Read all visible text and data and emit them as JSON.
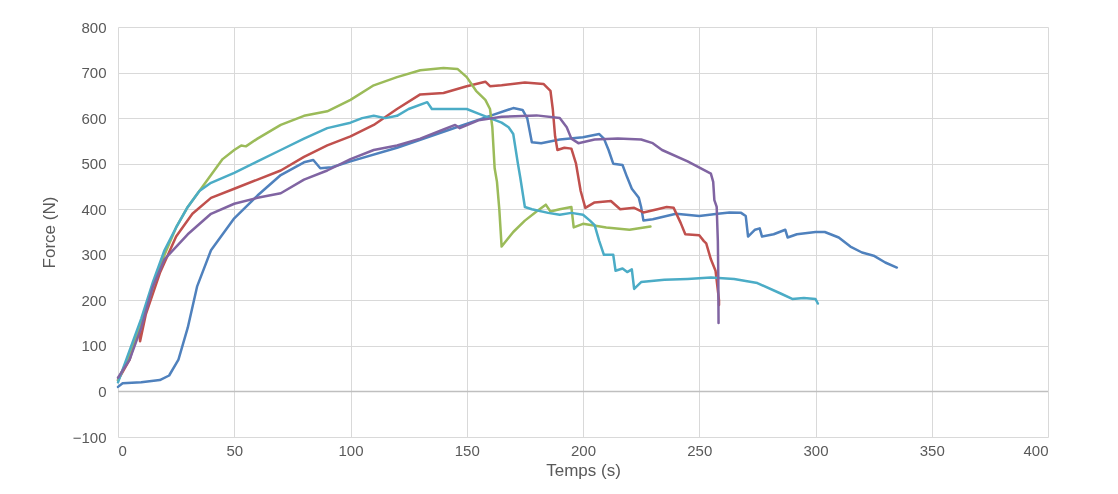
{
  "chart_data": {
    "type": "line",
    "xlabel": "Temps (s)",
    "ylabel": "Force (N)",
    "xlim": [
      0,
      400
    ],
    "ylim": [
      -100,
      800
    ],
    "xticks": [
      0,
      50,
      100,
      150,
      200,
      250,
      300,
      350,
      400
    ],
    "yticks": [
      -100,
      0,
      100,
      200,
      300,
      400,
      500,
      600,
      700,
      800
    ],
    "grid": true,
    "legend": false,
    "marker": "none",
    "line_style": "solid",
    "series": [
      {
        "color": "#4f81bd",
        "x": [
          0,
          2,
          10,
          18,
          22,
          26,
          30,
          34,
          40,
          50,
          60,
          70,
          80,
          84,
          87,
          92,
          100,
          120,
          140,
          160,
          170,
          174,
          176,
          178,
          182,
          190,
          200,
          207,
          209,
          211,
          213,
          217,
          219,
          221,
          224,
          225,
          226,
          230,
          240,
          250,
          258,
          263,
          268,
          270,
          271,
          274,
          276,
          277,
          282,
          287,
          288,
          292,
          300,
          304,
          310,
          315,
          320,
          325,
          330,
          335
        ],
        "values": [
          10,
          18,
          20,
          25,
          35,
          70,
          140,
          230,
          310,
          380,
          430,
          475,
          503,
          508,
          490,
          492,
          505,
          535,
          570,
          605,
          622,
          618,
          600,
          547,
          545,
          553,
          558,
          565,
          555,
          530,
          500,
          497,
          470,
          445,
          425,
          405,
          375,
          378,
          390,
          385,
          390,
          393,
          392,
          385,
          340,
          355,
          358,
          340,
          345,
          355,
          338,
          345,
          350,
          350,
          338,
          318,
          305,
          298,
          283,
          272
        ]
      },
      {
        "color": "#c0504d",
        "x": [
          0,
          5,
          9,
          9.5,
          12,
          18,
          25,
          32,
          40,
          50,
          60,
          70,
          80,
          90,
          100,
          110,
          120,
          130,
          140,
          150,
          158,
          160,
          165,
          175,
          183,
          186,
          187,
          188,
          189,
          192,
          195,
          197,
          199,
          201,
          205,
          212,
          216,
          222,
          226,
          232,
          236,
          239,
          242,
          244,
          250,
          252,
          253,
          255,
          257,
          258.5,
          258.5
        ],
        "values": [
          25,
          70,
          140,
          110,
          170,
          260,
          340,
          390,
          425,
          445,
          465,
          485,
          515,
          540,
          560,
          585,
          620,
          652,
          655,
          670,
          680,
          670,
          672,
          678,
          675,
          660,
          620,
          560,
          530,
          535,
          533,
          500,
          440,
          403,
          415,
          418,
          400,
          403,
          393,
          400,
          405,
          403,
          370,
          345,
          343,
          330,
          325,
          290,
          265,
          200,
          190
        ]
      },
      {
        "color": "#9bbb59",
        "x": [
          0,
          5,
          10,
          15,
          20,
          25,
          30,
          35,
          40,
          45,
          50,
          53,
          55,
          60,
          70,
          80,
          90,
          100,
          110,
          120,
          130,
          140,
          146,
          150,
          154,
          158,
          160,
          161,
          162,
          163,
          164,
          165,
          170,
          175,
          180,
          184,
          186,
          190,
          195,
          196,
          200,
          210,
          220,
          229
        ],
        "values": [
          25,
          80,
          150,
          230,
          300,
          360,
          405,
          440,
          475,
          510,
          530,
          540,
          538,
          555,
          585,
          605,
          615,
          640,
          672,
          690,
          705,
          710,
          708,
          690,
          660,
          640,
          620,
          580,
          490,
          460,
          400,
          318,
          350,
          375,
          395,
          410,
          395,
          400,
          405,
          360,
          368,
          360,
          355,
          362
        ]
      },
      {
        "color": "#4bacc6",
        "x": [
          0,
          5,
          10,
          15,
          20,
          25,
          30,
          35,
          40,
          50,
          60,
          70,
          80,
          90,
          100,
          105,
          110,
          115,
          120,
          125,
          133,
          135,
          150,
          155,
          160,
          165,
          168,
          170,
          172,
          173,
          175,
          178,
          185,
          190,
          195,
          200,
          203,
          205,
          207,
          209,
          213,
          214,
          217,
          219,
          221,
          222,
          225,
          235,
          245,
          255,
          265,
          275,
          285,
          290,
          295,
          300,
          301
        ],
        "values": [
          20,
          90,
          160,
          240,
          310,
          360,
          405,
          440,
          458,
          480,
          505,
          530,
          555,
          578,
          590,
          600,
          605,
          600,
          605,
          620,
          635,
          620,
          620,
          610,
          600,
          590,
          580,
          565,
          500,
          470,
          405,
          400,
          392,
          388,
          392,
          388,
          375,
          365,
          330,
          300,
          300,
          265,
          270,
          262,
          268,
          225,
          240,
          245,
          247,
          250,
          247,
          238,
          215,
          203,
          205,
          203,
          193
        ]
      },
      {
        "color": "#8064a2",
        "x": [
          0,
          5,
          10,
          15,
          20,
          30,
          40,
          50,
          60,
          70,
          80,
          90,
          100,
          110,
          120,
          130,
          140,
          145,
          147,
          155,
          165,
          180,
          190,
          193,
          195,
          198,
          205,
          215,
          225,
          230,
          234,
          245,
          255,
          256,
          256.5,
          257.5,
          258,
          258.2,
          258.3
        ],
        "values": [
          30,
          70,
          140,
          230,
          290,
          345,
          390,
          412,
          425,
          435,
          465,
          485,
          510,
          530,
          540,
          555,
          575,
          585,
          578,
          595,
          603,
          606,
          600,
          580,
          555,
          545,
          553,
          555,
          553,
          545,
          530,
          505,
          478,
          460,
          420,
          405,
          330,
          250,
          150
        ]
      }
    ]
  }
}
